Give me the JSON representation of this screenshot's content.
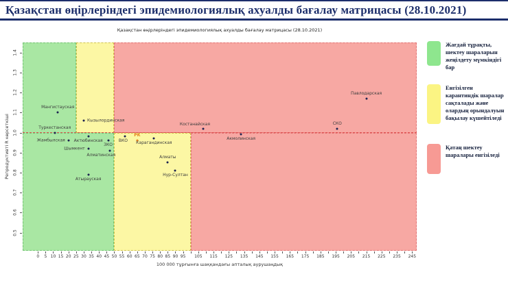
{
  "page_title": "Қазақстан өңірлеріндегі эпидемиологиялық ахуалды бағалау матрицасы  (28.10.2021)",
  "chart": {
    "subtitle": "Қазақстан өңірлеріндегі эпидемиологиялық ахуалды бағалау матрицасы  (28.10.2021)"
  },
  "chart_data": {
    "type": "scatter",
    "title": "Қазақстан өңірлеріндегі эпидемиологиялық ахуалды бағалау матрицасы  (28.10.2021)",
    "xlabel": "100 000 тұрғынға шаққандағы апталық аурушаңдық",
    "ylabel": "Репродуктивті R көрсеткіші",
    "xlim": [
      -10,
      248
    ],
    "ylim": [
      0.41,
      1.45
    ],
    "x_tick_step": 5,
    "x_tick_max": 245,
    "x_tick_labels": [
      0,
      5,
      10,
      15,
      20,
      25,
      30,
      35,
      40,
      45,
      50,
      55,
      60,
      65,
      70,
      75,
      80,
      85,
      90,
      95,
      105,
      115,
      125,
      135,
      145,
      155,
      165,
      175,
      185,
      195,
      205,
      215,
      225,
      235,
      245
    ],
    "y_ticks": [
      0.5,
      0.6,
      0.7,
      0.8,
      0.9,
      1.0,
      1.1,
      1.2,
      1.3,
      1.4
    ],
    "threshold_line_r": 1.0,
    "zones": [
      {
        "x0": -10,
        "x1": 25,
        "r0": 1.0,
        "r1": 1.45,
        "color": "green"
      },
      {
        "x0": 25,
        "x1": 50,
        "r0": 1.0,
        "r1": 1.45,
        "color": "yellow"
      },
      {
        "x0": 50,
        "x1": 248,
        "r0": 1.0,
        "r1": 1.45,
        "color": "red"
      },
      {
        "x0": -10,
        "x1": 50,
        "r0": 0.41,
        "r1": 1.0,
        "color": "green"
      },
      {
        "x0": 50,
        "x1": 100,
        "r0": 0.41,
        "r1": 1.0,
        "color": "yellow"
      },
      {
        "x0": 100,
        "x1": 248,
        "r0": 0.41,
        "r1": 1.0,
        "color": "red"
      }
    ],
    "points": [
      {
        "name": "Мангистауская",
        "x": 13,
        "r": 1.1,
        "label_pos": "above"
      },
      {
        "name": "Туркестанская",
        "x": 11,
        "r": 1.0,
        "label_pos": "above"
      },
      {
        "name": "Кызылординская",
        "x": 30,
        "r": 1.06,
        "label_pos": "right"
      },
      {
        "name": "Жамбылская",
        "x": 20,
        "r": 0.96,
        "label_pos": "left"
      },
      {
        "name": "Актюбинская",
        "x": 33,
        "r": 0.98,
        "label_pos": "below"
      },
      {
        "name": "ЗКО",
        "x": 46,
        "r": 0.96,
        "label_pos": "below"
      },
      {
        "name": "Шымкент",
        "x": 33,
        "r": 0.92,
        "label_pos": "left"
      },
      {
        "name": "Алматинская",
        "x": 47,
        "r": 0.91,
        "label_pos": "below-left"
      },
      {
        "name": "Атырауская",
        "x": 33,
        "r": 0.79,
        "label_pos": "below"
      },
      {
        "name": "ВКО",
        "x": 57,
        "r": 0.98,
        "label_pos": "below-left"
      },
      {
        "name": "РК",
        "x": 65,
        "r": 0.96,
        "label_pos": "above",
        "highlight": true
      },
      {
        "name": "Карагандинская",
        "x": 76,
        "r": 0.97,
        "label_pos": "below"
      },
      {
        "name": "Алматы",
        "x": 85,
        "r": 0.85,
        "label_pos": "above"
      },
      {
        "name": "Нур-Султан",
        "x": 90,
        "r": 0.81,
        "label_pos": "below"
      },
      {
        "name": "Костанайская",
        "x": 108,
        "r": 1.02,
        "label_pos": "above-left"
      },
      {
        "name": "Акмолинская",
        "x": 133,
        "r": 0.99,
        "label_pos": "below"
      },
      {
        "name": "СКО",
        "x": 196,
        "r": 1.02,
        "label_pos": "above"
      },
      {
        "name": "Павлодарская",
        "x": 215,
        "r": 1.17,
        "label_pos": "above"
      }
    ]
  },
  "legend": {
    "items": [
      {
        "color": "#8ee68e",
        "text": "Жағдай тұрақты, шектеу шараларын жеңілдету мүмкіндігі бар"
      },
      {
        "color": "#fbf483",
        "text": "Енгізілген карантиндік шаралар сақталады және олардың орындалуын бақылау күшейтіледі"
      },
      {
        "color": "#f79a94",
        "text": "Қатаң шектеу шаралары енгізіледі"
      }
    ]
  },
  "colors": {
    "title": "#1c2e6b",
    "zone_green": "#a9e7a3",
    "zone_yellow": "#fcf7a4",
    "zone_red": "#f7a8a3",
    "border_green": "#74c474",
    "border_yellow": "#cfc24c",
    "border_red": "#e37272",
    "threshold_line": "#e04f4f",
    "point": "#1c2250",
    "point_highlight": "#e5821e"
  }
}
